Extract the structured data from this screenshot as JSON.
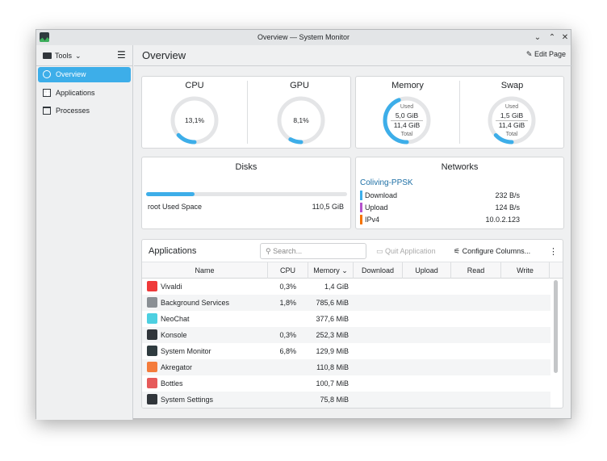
{
  "window": {
    "title": "Overview — System Monitor"
  },
  "sidebar": {
    "tools_label": "Tools",
    "items": [
      {
        "label": "Overview",
        "active": true
      },
      {
        "label": "Applications"
      },
      {
        "label": "Processes"
      }
    ]
  },
  "header": {
    "title": "Overview",
    "edit_label": "Edit Page"
  },
  "cpu": {
    "title": "CPU",
    "value": "13,1%",
    "fraction": 0.131
  },
  "gpu": {
    "title": "GPU",
    "value": "8,1%",
    "fraction": 0.081
  },
  "memory": {
    "title": "Memory",
    "used_label": "Used",
    "used": "5,0 GiB",
    "total": "11,4 GiB",
    "total_label": "Total",
    "fraction": 0.44
  },
  "swap": {
    "title": "Swap",
    "used_label": "Used",
    "used": "1,5 GiB",
    "total": "11,4 GiB",
    "total_label": "Total",
    "fraction": 0.13
  },
  "disks": {
    "title": "Disks",
    "label": "root Used Space",
    "value": "110,5 GiB",
    "fraction": 0.24
  },
  "networks": {
    "title": "Networks",
    "name": "Coliving-PPSK",
    "rows": [
      {
        "label": "Download",
        "value": "232 B/s",
        "color": "#3daee9"
      },
      {
        "label": "Upload",
        "value": "124 B/s",
        "color": "#b452cb"
      },
      {
        "label": "IPv4",
        "value": "10.0.2.123",
        "color": "#f67400"
      }
    ]
  },
  "apps": {
    "title": "Applications",
    "search_placeholder": "Search...",
    "quit_label": "Quit Application",
    "configure_label": "Configure Columns...",
    "columns": [
      "Name",
      "CPU",
      "Memory",
      "Download",
      "Upload",
      "Read",
      "Write"
    ],
    "rows": [
      {
        "name": "Vivaldi",
        "cpu": "0,3%",
        "memory": "1,4 GiB",
        "color": "#ef3939"
      },
      {
        "name": "Background Services",
        "cpu": "1,8%",
        "memory": "785,6 MiB",
        "color": "#8a8f94"
      },
      {
        "name": "NeoChat",
        "cpu": "",
        "memory": "377,6 MiB",
        "color": "#4dd0e1"
      },
      {
        "name": "Konsole",
        "cpu": "0,3%",
        "memory": "252,3 MiB",
        "color": "#31363b"
      },
      {
        "name": "System Monitor",
        "cpu": "6,8%",
        "memory": "129,9 MiB",
        "color": "#2f3b3f"
      },
      {
        "name": "Akregator",
        "cpu": "",
        "memory": "110,8 MiB",
        "color": "#f47c3c"
      },
      {
        "name": "Bottles",
        "cpu": "",
        "memory": "100,7 MiB",
        "color": "#e65a5a"
      },
      {
        "name": "System Settings",
        "cpu": "",
        "memory": "75,8 MiB",
        "color": "#31363b"
      }
    ]
  },
  "colors": {
    "accent": "#3daee9",
    "gauge_track": "#e4e5e7"
  }
}
